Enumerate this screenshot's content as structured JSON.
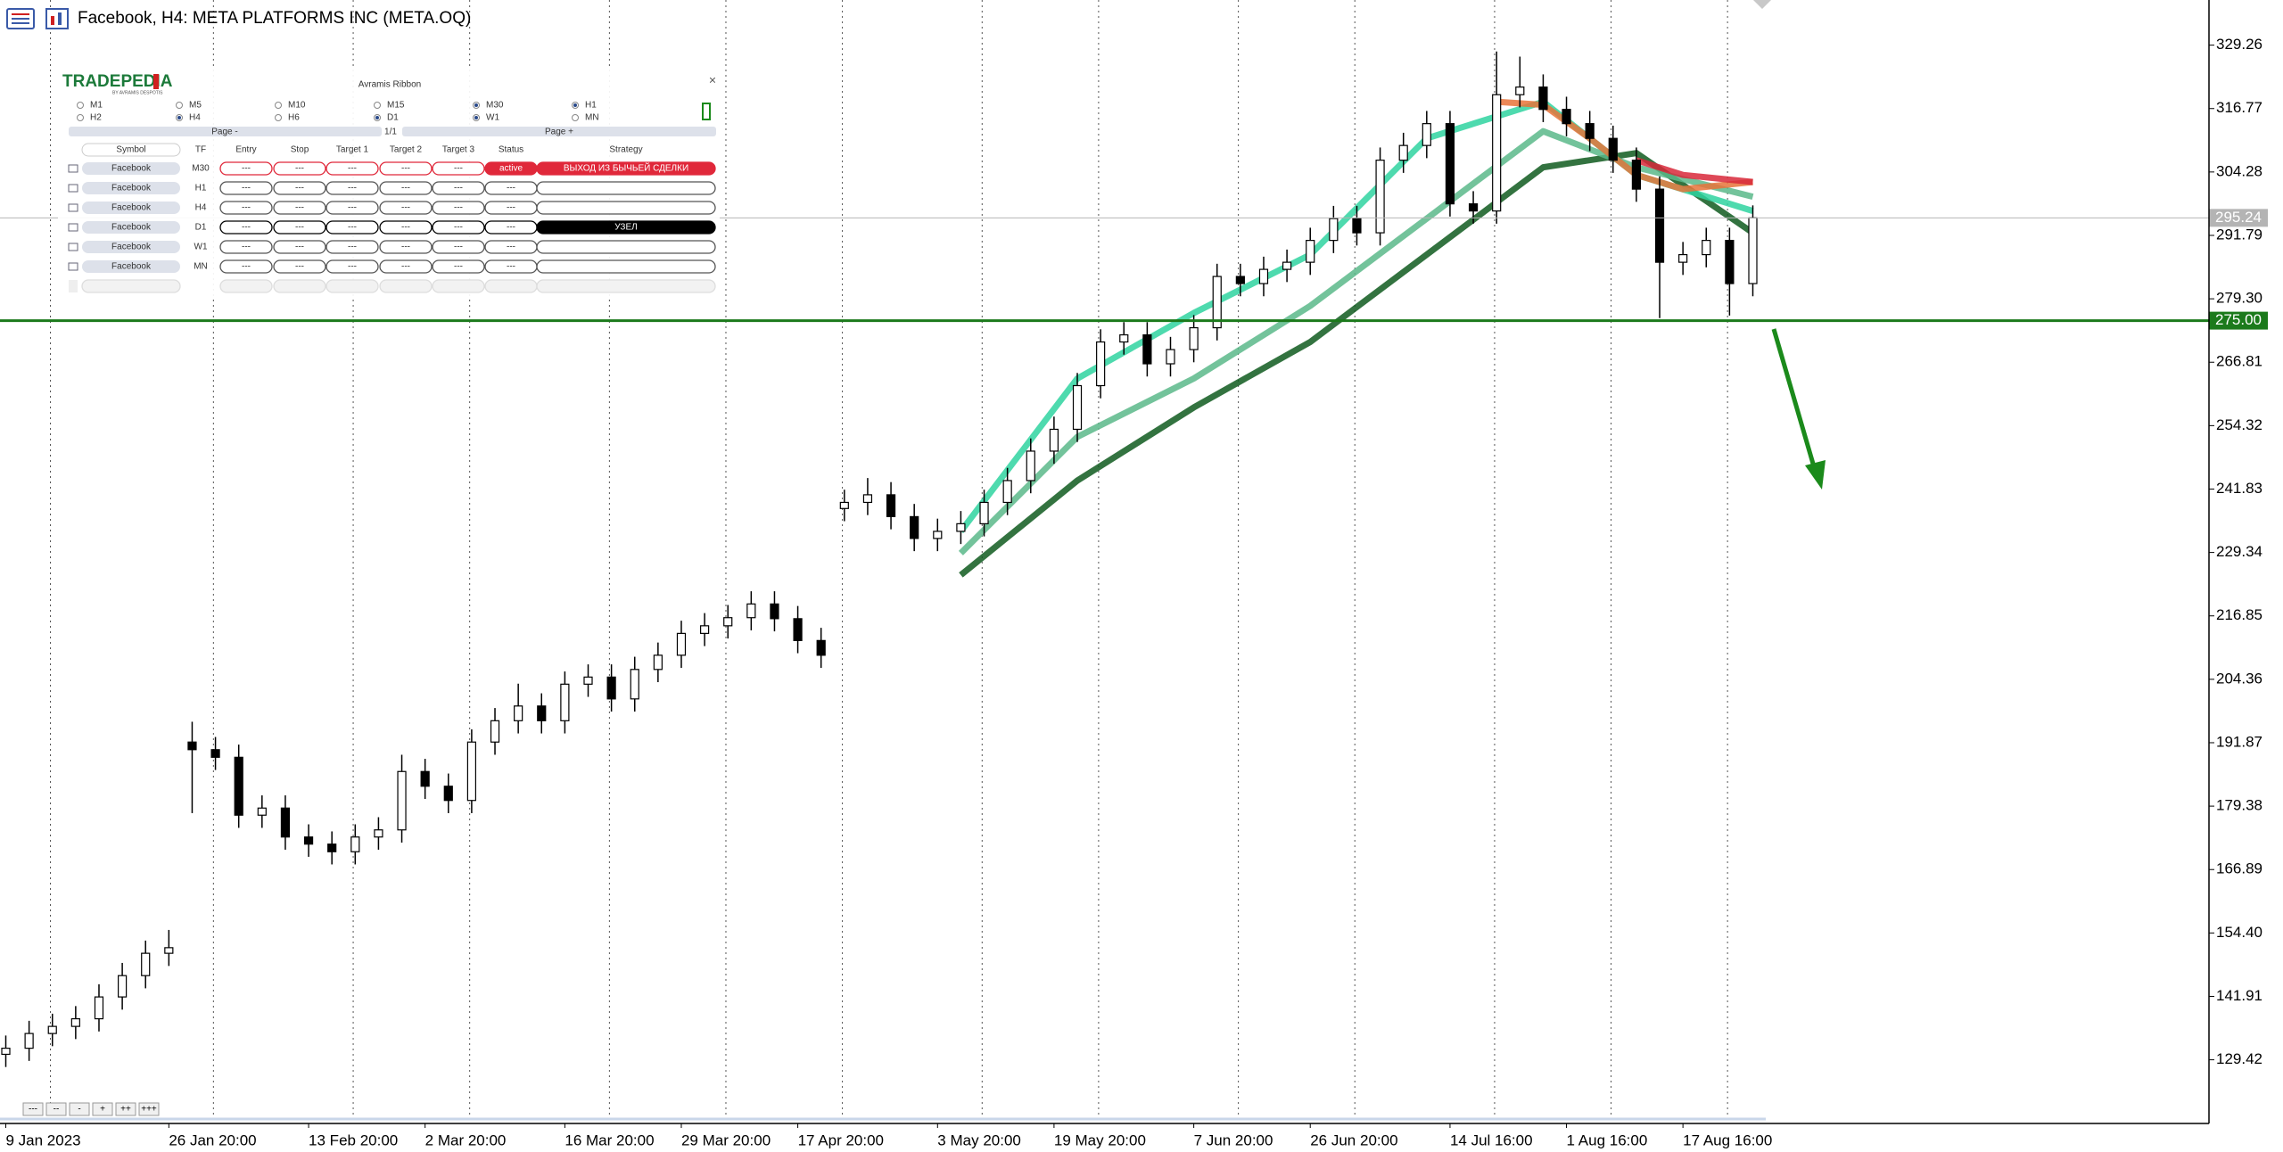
{
  "window": {
    "title": "Facebook, H4:  META PLATFORMS INC (META.OQ)"
  },
  "chart_data": {
    "type": "candlestick",
    "open": [
      130.5,
      131.7,
      134.6,
      136,
      137.5,
      141.8,
      146,
      150.4,
      192,
      190.5,
      189,
      177.6,
      179,
      173.3,
      171.9,
      170.4,
      173.3,
      174.7,
      186.2,
      183.3,
      180.5,
      192,
      196.2,
      199.1,
      196.2,
      203.4,
      204.8,
      200.5,
      206.3,
      209.1,
      213.4,
      214.9,
      216.5,
      219.2,
      216.3,
      212,
      238,
      239.2,
      240.7,
      236.4,
      232.1,
      233.5,
      235,
      239.2,
      243.5,
      249.3,
      253.6,
      262.2,
      270.8,
      272.2,
      266.5,
      269.3,
      273.6,
      283.7,
      282.3,
      285.1,
      286.5,
      290.8,
      295.1,
      292.3,
      306.6,
      309.5,
      313.8,
      298,
      296.6,
      319.5,
      321,
      316.6,
      313.8,
      310.9,
      306.6,
      300.9,
      286.5,
      288,
      290.8,
      282.3
    ],
    "high": [
      134.2,
      137.1,
      138.5,
      140,
      144.3,
      148.5,
      152.9,
      155,
      196,
      193,
      191.5,
      181.5,
      181.5,
      175.8,
      174.4,
      175.8,
      177.2,
      189.5,
      188.7,
      185.8,
      194.5,
      198.7,
      203.5,
      201.6,
      205.9,
      207.3,
      207.3,
      208.8,
      211.6,
      215.9,
      217.4,
      219,
      221.7,
      221.7,
      218.8,
      214.5,
      241.7,
      244,
      243.2,
      238.9,
      236,
      237.5,
      241.7,
      246,
      251.8,
      256.1,
      264.7,
      273.3,
      274.7,
      274.7,
      271.8,
      276.1,
      286.2,
      286.2,
      287.6,
      289,
      293.3,
      297.6,
      297.6,
      309.1,
      312,
      316.3,
      316.3,
      300.5,
      328,
      327,
      323.5,
      319.1,
      316.3,
      313.4,
      309.1,
      303.4,
      290.5,
      293.3,
      293.3,
      297.7
    ],
    "low": [
      128,
      129.2,
      132.1,
      133.5,
      135,
      139.3,
      143.5,
      147.9,
      178,
      186.5,
      175.1,
      175.1,
      170.8,
      169.4,
      167.9,
      167.9,
      170.8,
      172.2,
      180.8,
      178,
      178,
      189.5,
      193.7,
      193.7,
      193.7,
      200.9,
      198,
      198,
      203.8,
      206.6,
      210.9,
      212.4,
      214,
      213.8,
      209.5,
      206.6,
      235.5,
      236.7,
      233.9,
      229.6,
      229.6,
      231,
      232.5,
      236.7,
      241,
      246.8,
      251.1,
      259.7,
      268.3,
      264,
      264,
      266.8,
      271.1,
      279.8,
      279.8,
      282.6,
      284,
      288.3,
      289.8,
      289.8,
      304.1,
      307,
      295.5,
      294.1,
      294.1,
      317,
      314.1,
      311.3,
      308.4,
      304.1,
      298.4,
      275.5,
      284,
      285.5,
      276,
      279.8
    ],
    "close": [
      131.7,
      134.6,
      136,
      137.5,
      141.8,
      146,
      150.4,
      151.5,
      190.5,
      189,
      177.6,
      179,
      173.3,
      171.9,
      170.4,
      173.3,
      174.7,
      186.2,
      183.3,
      180.5,
      192,
      196.2,
      199.1,
      196.2,
      203.4,
      204.8,
      200.5,
      206.3,
      209.1,
      213.4,
      214.9,
      216.5,
      219.2,
      216.3,
      212,
      209.1,
      239.2,
      240.7,
      236.4,
      232.1,
      233.5,
      235,
      239.2,
      243.5,
      249.3,
      253.6,
      262.2,
      270.8,
      272.2,
      266.5,
      269.3,
      273.6,
      283.7,
      282.3,
      285.1,
      286.5,
      290.8,
      295.1,
      292.3,
      306.6,
      309.5,
      313.8,
      298,
      296.6,
      319.5,
      321,
      316.6,
      313.8,
      310.9,
      306.6,
      300.9,
      286.5,
      288,
      290.8,
      282.3,
      295.24
    ],
    "up_color": "#ffffff",
    "down_color": "#000000",
    "xticks": [
      {
        "value": 0,
        "label": "9 Jan 2023"
      },
      {
        "value": 7,
        "label": "26 Jan 20:00"
      },
      {
        "value": 13,
        "label": "13 Feb 20:00"
      },
      {
        "value": 18,
        "label": "2 Mar 20:00"
      },
      {
        "value": 24,
        "label": "16 Mar 20:00"
      },
      {
        "value": 29,
        "label": "29 Mar 20:00"
      },
      {
        "value": 34,
        "label": "17 Apr 20:00"
      },
      {
        "value": 40,
        "label": "3 May 20:00"
      },
      {
        "value": 45,
        "label": "19 May 20:00"
      },
      {
        "value": 51,
        "label": "7 Jun 20:00"
      },
      {
        "value": 56,
        "label": "26 Jun 20:00"
      },
      {
        "value": 62,
        "label": "14 Jul 16:00"
      },
      {
        "value": 67,
        "label": "1 Aug 16:00"
      },
      {
        "value": 72,
        "label": "17 Aug 16:00"
      }
    ],
    "ylim": [
      116.88,
      338.15
    ],
    "yticks": [
      329.26,
      316.77,
      304.28,
      291.79,
      {
        "value": 279.3,
        "label": "279.30"
      },
      266.81,
      254.32,
      241.83,
      229.34,
      216.85,
      204.36,
      191.87,
      179.38,
      166.89,
      {
        "value": 154.4,
        "label": "154.40"
      },
      141.91,
      129.42
    ],
    "ribbon": [
      {
        "color": "#0f5a1e",
        "x": [
          41,
          46,
          51,
          56,
          61,
          66,
          70,
          75
        ],
        "values": [
          224.9,
          243.5,
          257.9,
          270.8,
          288,
          305.2,
          308,
          292.3
        ]
      },
      {
        "color": "#5bb889",
        "x": [
          41,
          46,
          51,
          56,
          61,
          66,
          70,
          75
        ],
        "values": [
          229.2,
          252.1,
          263.6,
          277.9,
          295.1,
          312.3,
          305.2,
          299.4
        ]
      },
      {
        "color": "#2fd4a0",
        "x": [
          41,
          46,
          51,
          56,
          61,
          66,
          70,
          75
        ],
        "values": [
          233.5,
          263.6,
          276.5,
          288,
          310.9,
          318.1,
          303.7,
          296.6
        ]
      },
      {
        "color": "#e8733a",
        "x": [
          64,
          66,
          68,
          70,
          72,
          75
        ],
        "values": [
          318.1,
          317.5,
          310.9,
          303.7,
          300.9,
          302.3
        ]
      },
      {
        "color": "#d8283a",
        "x": [
          70,
          72,
          75
        ],
        "values": [
          306.6,
          303.7,
          302.3
        ]
      }
    ],
    "hlines": [
      {
        "value": 275,
        "label": "275.00",
        "color": "#1b7a1b"
      }
    ],
    "current_price": {
      "value": 295.24,
      "color": "#b4b4b4"
    }
  },
  "panel": {
    "logo": "TRADEPEDIA",
    "logo_sub": "BY AVRAMIS DESPOTIS",
    "title": "Avramis Ribbon",
    "close": "×",
    "timeframes": [
      {
        "label": "M1",
        "checked": false
      },
      {
        "label": "M5",
        "checked": false
      },
      {
        "label": "M10",
        "checked": false
      },
      {
        "label": "M15",
        "checked": false
      },
      {
        "label": "M30",
        "checked": true
      },
      {
        "label": "H1",
        "checked": true
      },
      {
        "label": "H2",
        "checked": false
      },
      {
        "label": "H4",
        "checked": true
      },
      {
        "label": "H6",
        "checked": false
      },
      {
        "label": "D1",
        "checked": true
      },
      {
        "label": "W1",
        "checked": true
      },
      {
        "label": "MN",
        "checked": false
      }
    ],
    "page_prev": "Page -",
    "page": "1/1",
    "page_next": "Page +",
    "headers": [
      "Symbol",
      "TF",
      "Entry",
      "Stop",
      "Target 1",
      "Target 2",
      "Target 3",
      "Status",
      "Strategy"
    ],
    "rows": [
      {
        "cells": [
          "Facebook",
          "M30",
          "---",
          "---",
          "---",
          "---",
          "---",
          "active",
          "ВЫХОД ИЗ БЫЧЬЕЙ СДЕЛКИ"
        ],
        "color": "#e0283a",
        "filled": [
          7,
          8
        ]
      },
      {
        "cells": [
          "Facebook",
          "H1",
          "---",
          "---",
          "---",
          "---",
          "---",
          "---"
        ],
        "color": "#555555",
        "filled": []
      },
      {
        "cells": [
          "Facebook",
          "H4",
          "---",
          "---",
          "---",
          "---",
          "---",
          "---"
        ],
        "color": "#555555",
        "filled": []
      },
      {
        "cells": [
          "Facebook",
          "D1",
          "---",
          "---",
          "---",
          "---",
          "---",
          "---",
          "УЗЕЛ"
        ],
        "color": "#000000",
        "filled": [
          8
        ]
      },
      {
        "cells": [
          "Facebook",
          "W1",
          "---",
          "---",
          "---",
          "---",
          "---",
          "---"
        ],
        "color": "#555555",
        "filled": []
      },
      {
        "cells": [
          "Facebook",
          "MN",
          "---",
          "---",
          "---",
          "---",
          "---",
          "---"
        ],
        "color": "#555555",
        "filled": []
      }
    ]
  },
  "zoom_buttons": [
    "---",
    "--",
    "-",
    "+",
    "++",
    "+++"
  ]
}
